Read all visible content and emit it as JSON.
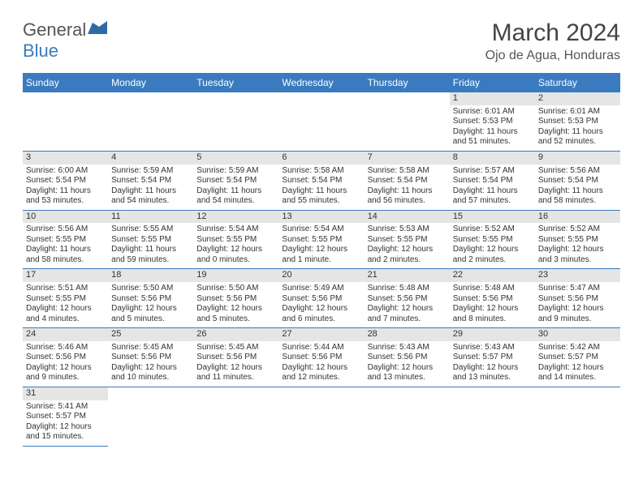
{
  "logo": {
    "text1": "General",
    "text2": "Blue"
  },
  "title": "March 2024",
  "location": "Ojo de Agua, Honduras",
  "colors": {
    "header_bg": "#3a7bbf",
    "header_fg": "#ffffff",
    "daynum_bg": "#e5e5e5",
    "text": "#333333",
    "rule": "#3a7bbf"
  },
  "day_names": [
    "Sunday",
    "Monday",
    "Tuesday",
    "Wednesday",
    "Thursday",
    "Friday",
    "Saturday"
  ],
  "weeks": [
    [
      null,
      null,
      null,
      null,
      null,
      {
        "n": "1",
        "sr": "6:01 AM",
        "ss": "5:53 PM",
        "dl": "11 hours and 51 minutes."
      },
      {
        "n": "2",
        "sr": "6:01 AM",
        "ss": "5:53 PM",
        "dl": "11 hours and 52 minutes."
      }
    ],
    [
      {
        "n": "3",
        "sr": "6:00 AM",
        "ss": "5:54 PM",
        "dl": "11 hours and 53 minutes."
      },
      {
        "n": "4",
        "sr": "5:59 AM",
        "ss": "5:54 PM",
        "dl": "11 hours and 54 minutes."
      },
      {
        "n": "5",
        "sr": "5:59 AM",
        "ss": "5:54 PM",
        "dl": "11 hours and 54 minutes."
      },
      {
        "n": "6",
        "sr": "5:58 AM",
        "ss": "5:54 PM",
        "dl": "11 hours and 55 minutes."
      },
      {
        "n": "7",
        "sr": "5:58 AM",
        "ss": "5:54 PM",
        "dl": "11 hours and 56 minutes."
      },
      {
        "n": "8",
        "sr": "5:57 AM",
        "ss": "5:54 PM",
        "dl": "11 hours and 57 minutes."
      },
      {
        "n": "9",
        "sr": "5:56 AM",
        "ss": "5:54 PM",
        "dl": "11 hours and 58 minutes."
      }
    ],
    [
      {
        "n": "10",
        "sr": "5:56 AM",
        "ss": "5:55 PM",
        "dl": "11 hours and 58 minutes."
      },
      {
        "n": "11",
        "sr": "5:55 AM",
        "ss": "5:55 PM",
        "dl": "11 hours and 59 minutes."
      },
      {
        "n": "12",
        "sr": "5:54 AM",
        "ss": "5:55 PM",
        "dl": "12 hours and 0 minutes."
      },
      {
        "n": "13",
        "sr": "5:54 AM",
        "ss": "5:55 PM",
        "dl": "12 hours and 1 minute."
      },
      {
        "n": "14",
        "sr": "5:53 AM",
        "ss": "5:55 PM",
        "dl": "12 hours and 2 minutes."
      },
      {
        "n": "15",
        "sr": "5:52 AM",
        "ss": "5:55 PM",
        "dl": "12 hours and 2 minutes."
      },
      {
        "n": "16",
        "sr": "5:52 AM",
        "ss": "5:55 PM",
        "dl": "12 hours and 3 minutes."
      }
    ],
    [
      {
        "n": "17",
        "sr": "5:51 AM",
        "ss": "5:55 PM",
        "dl": "12 hours and 4 minutes."
      },
      {
        "n": "18",
        "sr": "5:50 AM",
        "ss": "5:56 PM",
        "dl": "12 hours and 5 minutes."
      },
      {
        "n": "19",
        "sr": "5:50 AM",
        "ss": "5:56 PM",
        "dl": "12 hours and 5 minutes."
      },
      {
        "n": "20",
        "sr": "5:49 AM",
        "ss": "5:56 PM",
        "dl": "12 hours and 6 minutes."
      },
      {
        "n": "21",
        "sr": "5:48 AM",
        "ss": "5:56 PM",
        "dl": "12 hours and 7 minutes."
      },
      {
        "n": "22",
        "sr": "5:48 AM",
        "ss": "5:56 PM",
        "dl": "12 hours and 8 minutes."
      },
      {
        "n": "23",
        "sr": "5:47 AM",
        "ss": "5:56 PM",
        "dl": "12 hours and 9 minutes."
      }
    ],
    [
      {
        "n": "24",
        "sr": "5:46 AM",
        "ss": "5:56 PM",
        "dl": "12 hours and 9 minutes."
      },
      {
        "n": "25",
        "sr": "5:45 AM",
        "ss": "5:56 PM",
        "dl": "12 hours and 10 minutes."
      },
      {
        "n": "26",
        "sr": "5:45 AM",
        "ss": "5:56 PM",
        "dl": "12 hours and 11 minutes."
      },
      {
        "n": "27",
        "sr": "5:44 AM",
        "ss": "5:56 PM",
        "dl": "12 hours and 12 minutes."
      },
      {
        "n": "28",
        "sr": "5:43 AM",
        "ss": "5:56 PM",
        "dl": "12 hours and 13 minutes."
      },
      {
        "n": "29",
        "sr": "5:43 AM",
        "ss": "5:57 PM",
        "dl": "12 hours and 13 minutes."
      },
      {
        "n": "30",
        "sr": "5:42 AM",
        "ss": "5:57 PM",
        "dl": "12 hours and 14 minutes."
      }
    ],
    [
      {
        "n": "31",
        "sr": "5:41 AM",
        "ss": "5:57 PM",
        "dl": "12 hours and 15 minutes."
      },
      null,
      null,
      null,
      null,
      null,
      null
    ]
  ],
  "labels": {
    "sunrise": "Sunrise: ",
    "sunset": "Sunset: ",
    "daylight": "Daylight: "
  }
}
